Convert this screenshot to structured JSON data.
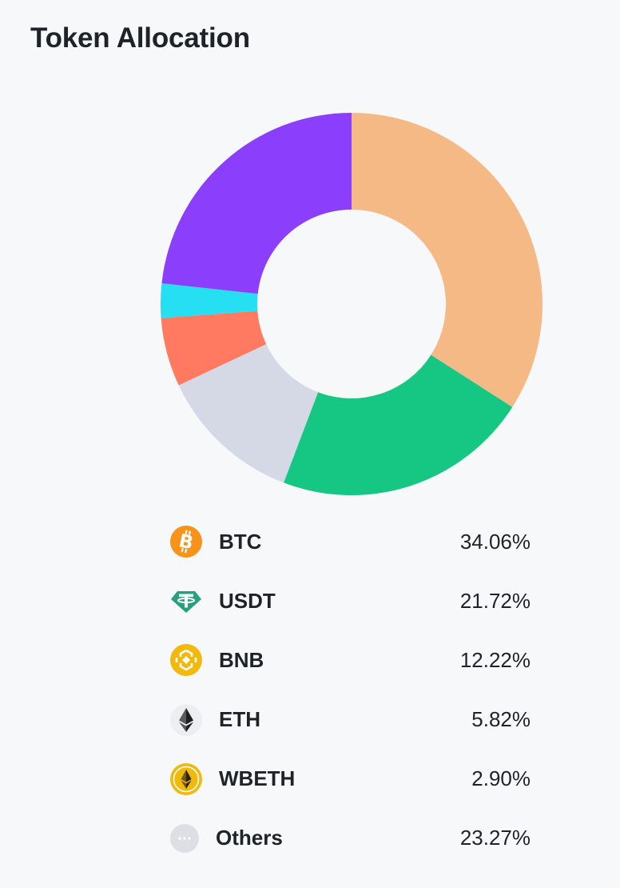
{
  "page": {
    "title": "Token Allocation"
  },
  "chart_data": {
    "type": "pie",
    "title": "Token Allocation",
    "donut": true,
    "labels": [
      "BTC",
      "USDT",
      "BNB",
      "ETH",
      "WBETH",
      "Others"
    ],
    "values": [
      34.06,
      21.72,
      12.22,
      5.82,
      2.9,
      23.27
    ],
    "display_values": [
      "34.06%",
      "21.72%",
      "12.22%",
      "5.82%",
      "2.90%",
      "23.27%"
    ],
    "colors": [
      "#f5b985",
      "#16c784",
      "#d5d9e6",
      "#ff7a60",
      "#27dff2",
      "#8b3ffd"
    ],
    "start_angle": "top, clockwise",
    "legend_position": "bottom"
  },
  "legend": [
    {
      "symbol": "BTC",
      "percent": "34.06%",
      "icon": "bitcoin-icon",
      "icon_color": "#f7931a"
    },
    {
      "symbol": "USDT",
      "percent": "21.72%",
      "icon": "tether-icon",
      "icon_color": "#26a17b"
    },
    {
      "symbol": "BNB",
      "percent": "12.22%",
      "icon": "bnb-icon",
      "icon_color": "#f0b90b"
    },
    {
      "symbol": "ETH",
      "percent": "5.82%",
      "icon": "ethereum-icon",
      "icon_color": "#2f2f2f"
    },
    {
      "symbol": "WBETH",
      "percent": "2.90%",
      "icon": "wbeth-icon",
      "icon_color": "#f0b90b"
    },
    {
      "symbol": "Others",
      "percent": "23.27%",
      "icon": "more-dots-icon",
      "icon_color": "#d9dce2"
    }
  ]
}
